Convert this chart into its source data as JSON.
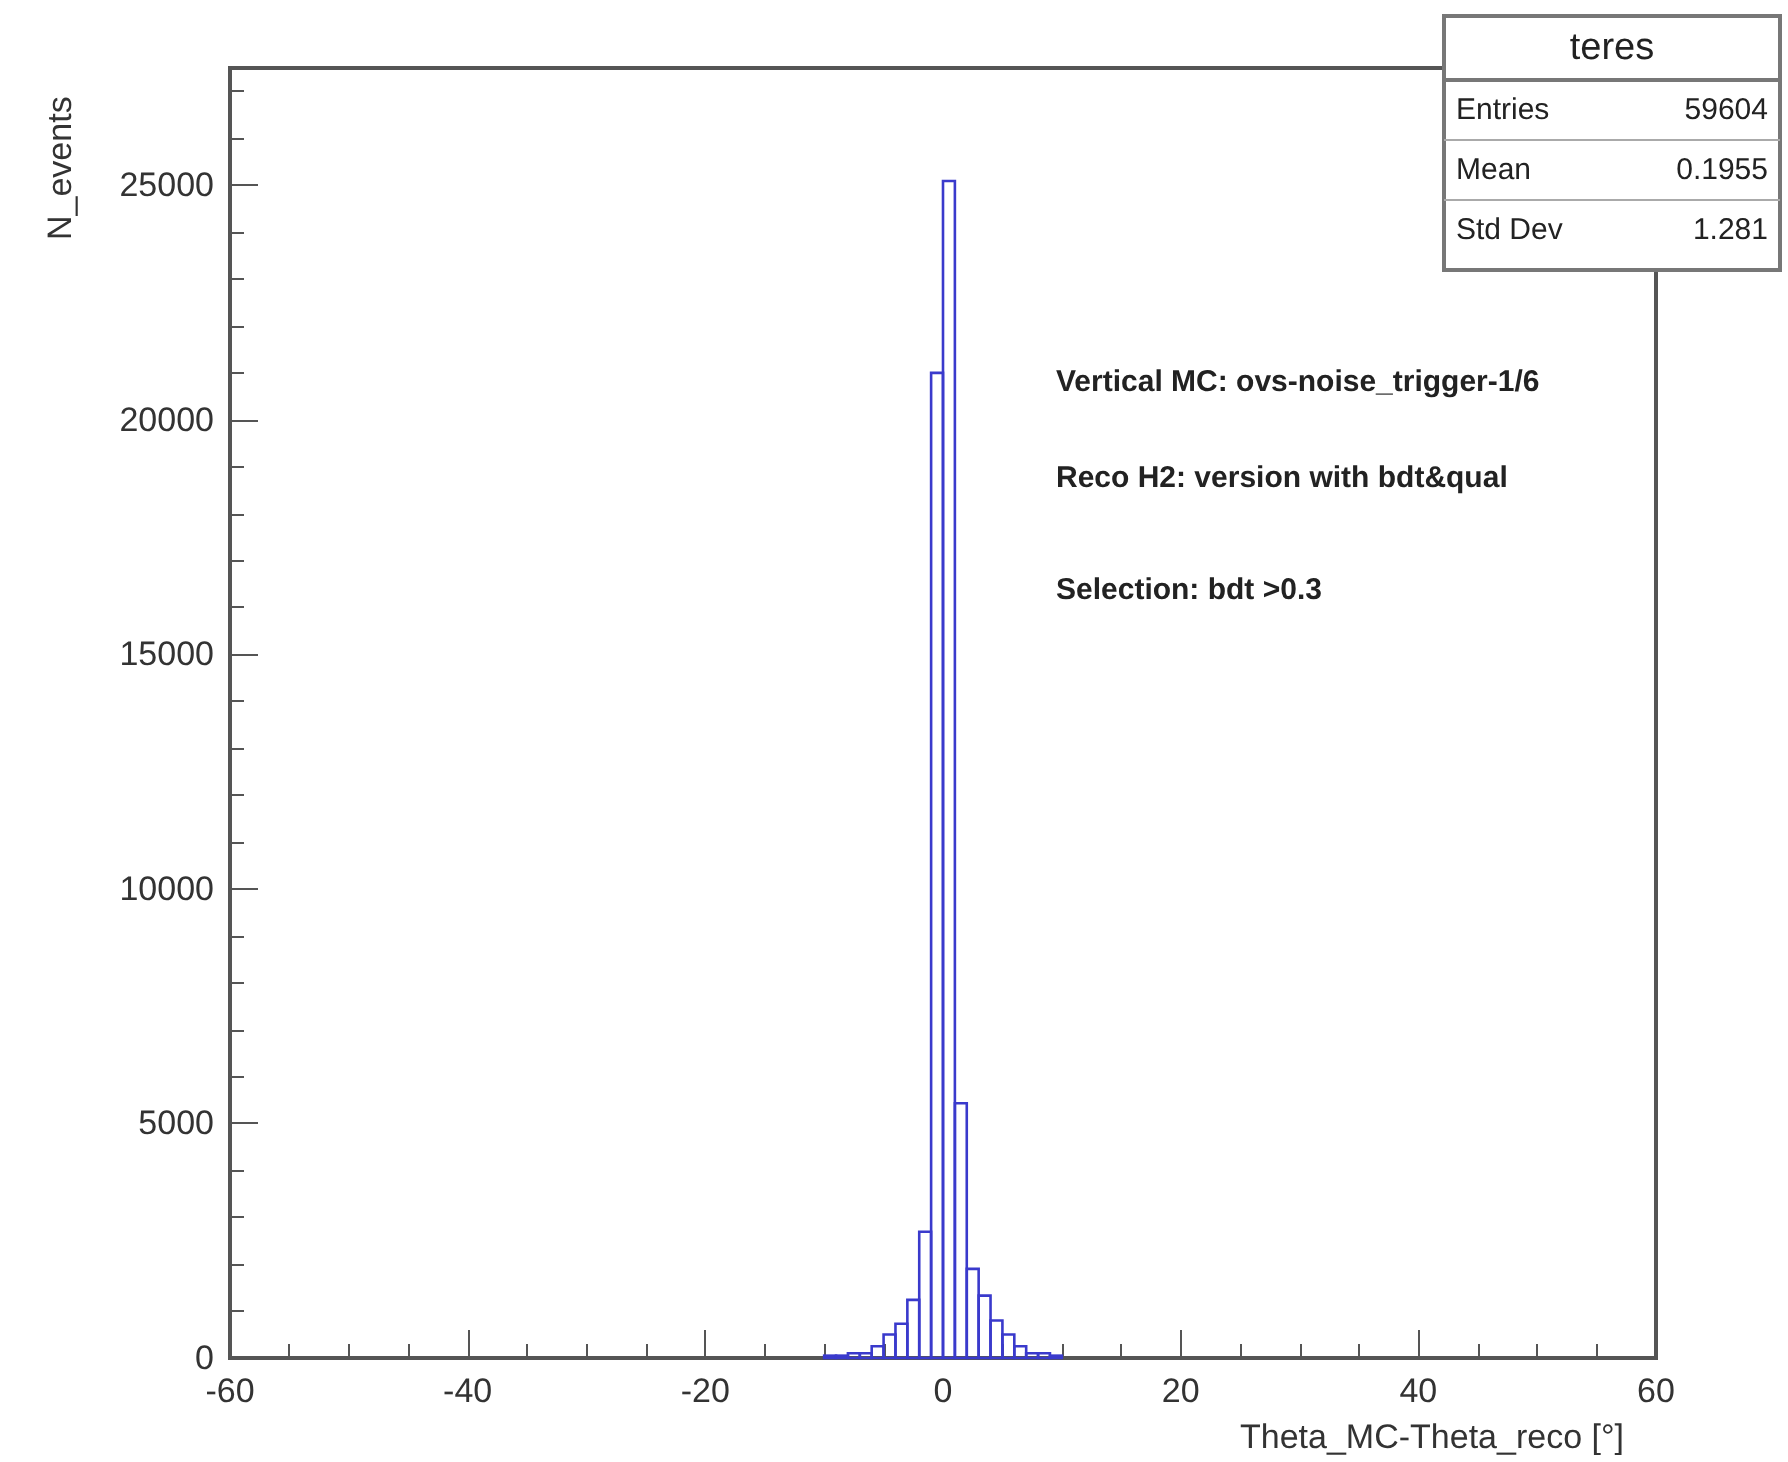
{
  "chart_data": {
    "type": "histogram",
    "xlabel": "Theta_MC-Theta_reco [°]",
    "ylabel": "N_events",
    "bins": [
      -10,
      -9,
      -8,
      -7,
      -6,
      -5,
      -4,
      -3,
      -2,
      -1,
      0,
      1,
      2,
      3,
      4,
      5,
      6,
      7,
      8,
      9,
      10
    ],
    "values": [
      50,
      50,
      100,
      100,
      250,
      500,
      730,
      1240,
      2690,
      21000,
      25090,
      5430,
      1900,
      1330,
      800,
      500,
      250,
      100,
      100,
      50
    ],
    "color": "#3a3acc",
    "xlim": [
      -60,
      60
    ],
    "xticks": [
      -60,
      -40,
      -20,
      0,
      20,
      40,
      60
    ],
    "ylim": [
      0,
      27500
    ],
    "yticks": [
      0,
      5000,
      10000,
      15000,
      20000,
      25000
    ],
    "grid": false,
    "annotations": [
      "teres",
      "Entries 59604",
      "Mean 0.1955",
      "Std Dev 1.281",
      "Vertical MC: ovs-noise_trigger-1/6",
      "Reco H2: version with bdt&qual",
      "Selection: bdt >0.3"
    ]
  }
}
